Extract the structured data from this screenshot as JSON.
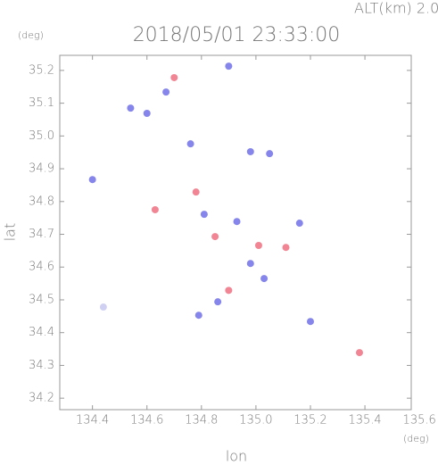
{
  "chart_data": {
    "type": "scatter",
    "title": "2018/05/01 23:33:00",
    "subtitle": "ALT(km) 2.0",
    "y_unit": "(deg)",
    "x_unit": "(deg)",
    "xlabel": "lon",
    "ylabel": "lat",
    "xlim": [
      134.28,
      135.57
    ],
    "ylim": [
      34.165,
      35.246
    ],
    "xticks": [
      {
        "value": 134.4,
        "label": "134.4"
      },
      {
        "value": 134.6,
        "label": "134.6"
      },
      {
        "value": 134.8,
        "label": "134.8"
      },
      {
        "value": 135.0,
        "label": "135.0"
      },
      {
        "value": 135.2,
        "label": "135.2"
      },
      {
        "value": 135.4,
        "label": "135.4"
      },
      {
        "value": 135.6,
        "label": "135.6"
      }
    ],
    "yticks": [
      34.2,
      34.3,
      34.4,
      34.5,
      34.6,
      34.7,
      34.8,
      34.9,
      {
        "value": 35.0,
        "label": "35.0"
      },
      35.1,
      35.2
    ],
    "x": [
      134.44,
      134.9,
      134.7,
      134.67,
      134.6,
      134.54,
      134.76,
      134.98,
      135.05,
      134.4,
      134.78,
      134.63,
      134.81,
      134.93,
      134.85,
      135.01,
      135.11,
      134.98,
      135.03,
      134.9,
      134.86,
      134.79,
      135.2,
      135.38,
      135.16
    ],
    "y": [
      34.478,
      35.213,
      35.178,
      35.134,
      35.069,
      35.085,
      34.976,
      34.952,
      34.946,
      34.867,
      34.829,
      34.775,
      34.761,
      34.739,
      34.693,
      34.666,
      34.66,
      34.611,
      34.565,
      34.529,
      34.494,
      34.453,
      34.434,
      34.339,
      34.734
    ],
    "colors": [
      "#c8c8f0",
      "#7070e8",
      "#f07080",
      "#7070e8",
      "#7070e8",
      "#7070e8",
      "#7070e8",
      "#7070e8",
      "#7070e8",
      "#7070e8",
      "#f07080",
      "#f07080",
      "#7070e8",
      "#7070e8",
      "#f07080",
      "#f07080",
      "#f07080",
      "#7070e8",
      "#7070e8",
      "#f07080",
      "#7070e8",
      "#7070e8",
      "#7070e8",
      "#f07080",
      "#7070e8"
    ]
  }
}
